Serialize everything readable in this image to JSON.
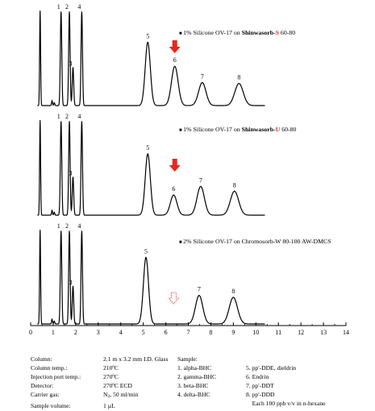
{
  "chart_data": {
    "type": "line",
    "xlabel": "",
    "ylabel": "",
    "xlim": [
      0,
      14
    ],
    "xticks": [
      "0",
      "1",
      "2",
      "3",
      "4",
      "5",
      "6",
      "7",
      "8",
      "9",
      "10",
      "11",
      "12",
      "13",
      "14"
    ],
    "panels": [
      {
        "legend": {
          "prefix": "1% Silicone OV-17 on ",
          "bold": "Shinwasorb-",
          "accent": "S",
          "suffix": " 60-80"
        },
        "accent_color": "#e8261c",
        "arrow": {
          "x": 6.4,
          "style": "solid"
        },
        "peaks": [
          {
            "label": "1",
            "t": 1.35,
            "h": 0.98
          },
          {
            "label": "2",
            "t": 1.72,
            "h": 0.98
          },
          {
            "label": "3",
            "t": 1.88,
            "h": 0.4
          },
          {
            "label": "4",
            "t": 2.27,
            "h": 0.98
          },
          {
            "label": "5",
            "t": 5.2,
            "h": 0.66
          },
          {
            "label": "6",
            "t": 6.4,
            "h": 0.41
          },
          {
            "label": "7",
            "t": 7.62,
            "h": 0.24
          },
          {
            "label": "8",
            "t": 9.25,
            "h": 0.23
          }
        ]
      },
      {
        "legend": {
          "prefix": "1% Silicone OV-17 on ",
          "bold": "Shinwasorb-",
          "accent": "U",
          "suffix": " 60-80"
        },
        "accent_color": "#e8261c",
        "arrow": {
          "x": 6.4,
          "style": "solid"
        },
        "peaks": [
          {
            "label": "1",
            "t": 1.35,
            "h": 0.98
          },
          {
            "label": "2",
            "t": 1.72,
            "h": 0.98
          },
          {
            "label": "3",
            "t": 1.88,
            "h": 0.4
          },
          {
            "label": "4",
            "t": 2.27,
            "h": 0.98
          },
          {
            "label": "5",
            "t": 5.2,
            "h": 0.64
          },
          {
            "label": "6",
            "t": 6.35,
            "h": 0.21
          },
          {
            "label": "7",
            "t": 7.55,
            "h": 0.3
          },
          {
            "label": "8",
            "t": 9.05,
            "h": 0.25
          }
        ]
      },
      {
        "legend": {
          "prefix": "2% Silicone OV-17 on Chromosorb-W 80-100 AW-DMCS",
          "bold": "",
          "accent": "",
          "suffix": ""
        },
        "accent_color": "#e8261c",
        "arrow": {
          "x": 6.35,
          "style": "dashed"
        },
        "peaks": [
          {
            "label": "1",
            "t": 1.35,
            "h": 0.98
          },
          {
            "label": "2",
            "t": 1.72,
            "h": 0.98
          },
          {
            "label": "3",
            "t": 1.88,
            "h": 0.4
          },
          {
            "label": "4",
            "t": 2.27,
            "h": 0.98
          },
          {
            "label": "5",
            "t": 5.12,
            "h": 0.7
          },
          {
            "label": "7",
            "t": 7.48,
            "h": 0.3
          },
          {
            "label": "8",
            "t": 9.0,
            "h": 0.28
          }
        ]
      }
    ]
  },
  "conditions": {
    "column": {
      "label": "Column:",
      "value": "2.1 m x 3.2 mm I.D.  Glass"
    },
    "column_temp": {
      "label": "Column temp.:",
      "value": "210ºC"
    },
    "injection_temp": {
      "label": "Injection port temp.:",
      "value": "270ºC"
    },
    "detector": {
      "label": "Detector:",
      "value": "270ºC ECD"
    },
    "carrier_gas": {
      "label": "Carrier gas:",
      "value_pre": "N",
      "value_sub": "2",
      "value_post": ", 50 ml/min"
    },
    "sample_volume": {
      "label": "Sample volume:",
      "value": "1 µL"
    }
  },
  "sample": {
    "title": "Sample:",
    "col1": [
      "1. alpha-BHC",
      "2. gamma-BHC",
      "3. beta-BHC",
      "4. delta-BHC"
    ],
    "col2": [
      "5. pp'-DDE, dieldrin",
      "6. Endrin",
      "7. pp'-DDT",
      "8. pp'-DDD",
      "    Each 100 ppb v/v in n-hexane"
    ]
  }
}
